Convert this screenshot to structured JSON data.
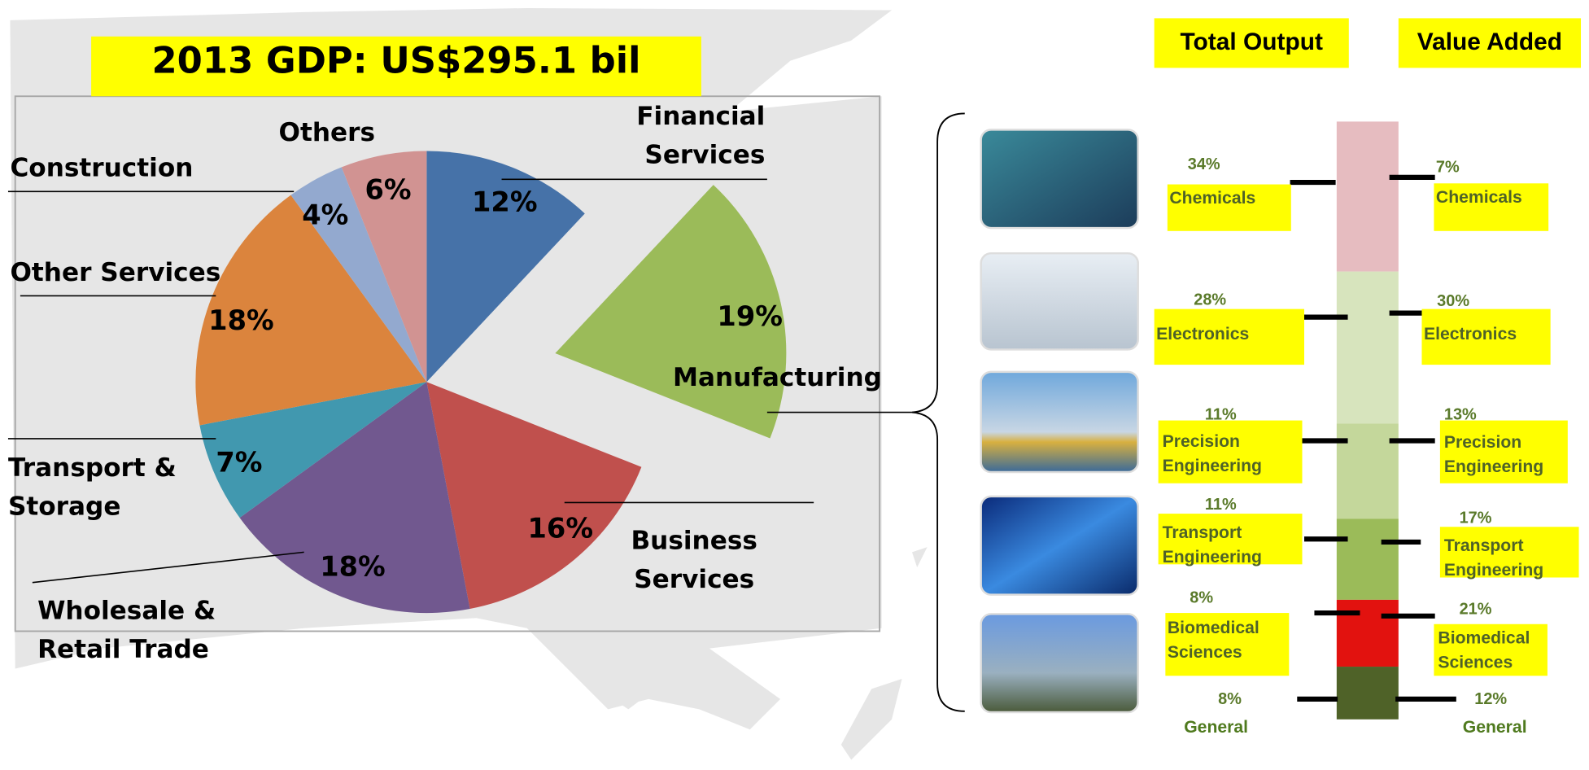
{
  "chart_data": [
    {
      "type": "pie",
      "title": "2013 GDP: US$295.1 bil",
      "categories": [
        "Financial Services",
        "Manufacturing",
        "Business Services",
        "Wholesale & Retail Trade",
        "Transport & Storage",
        "Other Services",
        "Construction",
        "Others"
      ],
      "values": [
        12,
        19,
        16,
        18,
        7,
        18,
        4,
        6
      ],
      "value_labels": [
        "12%",
        "19%",
        "16%",
        "18%",
        "7%",
        "18%",
        "4%",
        "6%"
      ],
      "colors": [
        "#4672a8",
        "#9bbb59",
        "#c0504d",
        "#71588f",
        "#4198af",
        "#db843d",
        "#93a9cf",
        "#d19392"
      ],
      "exploded": "Manufacturing"
    },
    {
      "type": "label-column",
      "categories": [
        "Chemicals",
        "Electronics",
        "Precision Engineering",
        "Transport Engineering",
        "Biomedical Sciences",
        "General"
      ],
      "series": [
        {
          "name": "Total Output",
          "values": [
            34,
            28,
            11,
            11,
            8,
            8
          ],
          "value_labels": [
            "34%",
            "28%",
            "11%",
            "11%",
            "8%",
            "8%"
          ],
          "color": "#000000"
        },
        {
          "name": "Value Added",
          "values": [
            7,
            30,
            13,
            17,
            21,
            12
          ],
          "value_labels": [
            "7%",
            "30%",
            "13%",
            "17%",
            "21%",
            "12%"
          ],
          "color": "#000000"
        }
      ]
    }
  ]
}
